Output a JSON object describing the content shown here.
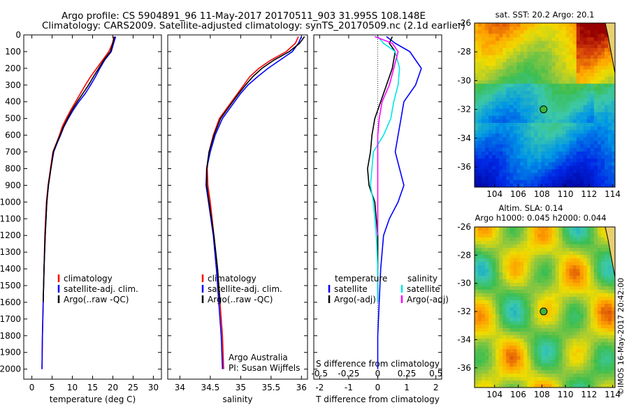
{
  "header": {
    "title_line1": "Argo profile: CS 5904891_96 11-May-2017 20170511_903 31.995S 108.148E",
    "title_line2": "Climatology: CARS2009. Satellite-adjusted climatology: synTS_20170509.nc (2.1d earlier)"
  },
  "credit": "©IMOS 16-May-2017 20:42:00",
  "colors": {
    "climatology": "#ff0000",
    "satellite": "#0000ff",
    "argo": "#000000",
    "salinity_sat": "#00e6e6",
    "salinity_argo": "#ff00ff"
  },
  "chart_data": [
    {
      "type": "line",
      "xlabel": "temperature (deg C)",
      "xlim": [
        -2,
        32
      ],
      "ylim": [
        2060,
        0
      ],
      "xticks": [
        "0",
        "5",
        "10",
        "15",
        "20",
        "25",
        "30"
      ],
      "yticks": [
        "0",
        "100",
        "200",
        "300",
        "400",
        "500",
        "600",
        "700",
        "800",
        "900",
        "1000",
        "1100",
        "1200",
        "1300",
        "1400",
        "1500",
        "1600",
        "1700",
        "1800",
        "1900",
        "2000"
      ],
      "legend": [
        "climatology",
        "satellite-adj. clim.",
        "Argo(..raw -QC)"
      ],
      "series": [
        {
          "name": "climatology",
          "color": "#ff0000",
          "x": [
            20.3,
            19.9,
            19.0,
            17.5,
            16.0,
            14.5,
            13.2,
            12.0,
            10.8,
            9.6,
            8.5,
            7.5,
            6.8,
            6.0,
            5.2,
            4.6,
            4.0,
            3.6,
            3.2,
            3.0,
            2.8,
            2.6,
            2.5
          ],
          "y": [
            10,
            50,
            100,
            150,
            200,
            250,
            300,
            350,
            400,
            450,
            500,
            550,
            600,
            650,
            700,
            800,
            900,
            1000,
            1200,
            1400,
            1600,
            1800,
            2000
          ]
        },
        {
          "name": "satellite-adj. clim.",
          "color": "#0000ff",
          "x": [
            20.7,
            20.2,
            19.6,
            18.0,
            16.8,
            15.7,
            14.5,
            13.2,
            11.6,
            10.2,
            9.0,
            7.9,
            7.1,
            6.2,
            5.4,
            4.7,
            4.1,
            3.7,
            3.3,
            3.0,
            2.8,
            2.6,
            2.5
          ],
          "y": [
            10,
            50,
            100,
            150,
            200,
            250,
            300,
            350,
            400,
            450,
            500,
            550,
            600,
            650,
            700,
            800,
            900,
            1000,
            1200,
            1400,
            1600,
            1800,
            2000
          ]
        },
        {
          "name": "Argo(..raw -QC)",
          "color": "#000000",
          "x": [
            20.4,
            20.0,
            19.4,
            17.8,
            16.5,
            15.2,
            14.0,
            12.6,
            11.2,
            9.9,
            8.8,
            7.8,
            7.0,
            6.1,
            5.3,
            4.7,
            4.1,
            3.7,
            3.3,
            3.0,
            2.8
          ],
          "y": [
            10,
            50,
            100,
            150,
            200,
            250,
            300,
            350,
            400,
            450,
            500,
            550,
            600,
            650,
            700,
            800,
            900,
            1000,
            1200,
            1400,
            1600
          ]
        }
      ]
    },
    {
      "type": "line",
      "xlabel": "salinity",
      "xlim": [
        33.8,
        36.1
      ],
      "ylim": [
        2060,
        0
      ],
      "xticks": [
        "34",
        "34.5",
        "35",
        "35.5",
        "36"
      ],
      "legend": [
        "climatology",
        "satellite-adj. clim.",
        "Argo(..raw -QC)"
      ],
      "annotation": [
        "Argo Australia",
        "PI: Susan Wijffels"
      ],
      "series": [
        {
          "name": "climatology",
          "color": "#ff0000",
          "x": [
            35.95,
            35.9,
            35.75,
            35.5,
            35.3,
            35.15,
            35.05,
            34.95,
            34.85,
            34.75,
            34.65,
            34.55,
            34.48,
            34.45,
            34.46,
            34.5,
            34.56,
            34.62,
            34.66,
            34.7,
            34.72
          ],
          "y": [
            10,
            50,
            100,
            150,
            200,
            250,
            300,
            350,
            400,
            450,
            500,
            600,
            700,
            800,
            900,
            1000,
            1200,
            1400,
            1600,
            1800,
            2000
          ]
        },
        {
          "name": "satellite-adj. clim.",
          "color": "#0000ff",
          "x": [
            36.0,
            35.95,
            35.85,
            35.65,
            35.45,
            35.28,
            35.12,
            35.0,
            34.9,
            34.8,
            34.7,
            34.58,
            34.5,
            34.44,
            34.43,
            34.47,
            34.55,
            34.6,
            34.64,
            34.68,
            34.7
          ],
          "y": [
            10,
            50,
            100,
            150,
            200,
            250,
            300,
            350,
            400,
            450,
            500,
            600,
            700,
            800,
            900,
            1000,
            1200,
            1400,
            1600,
            1800,
            2000
          ]
        },
        {
          "name": "Argo(..raw -QC)",
          "color": "#000000",
          "x": [
            36.05,
            35.97,
            35.8,
            35.55,
            35.35,
            35.2,
            35.08,
            34.97,
            34.87,
            34.77,
            34.67,
            34.56,
            34.48,
            34.44,
            34.44,
            34.48,
            34.56,
            34.62,
            34.66
          ],
          "y": [
            10,
            50,
            100,
            150,
            200,
            250,
            300,
            350,
            400,
            450,
            500,
            600,
            700,
            800,
            900,
            1000,
            1200,
            1400,
            1600
          ]
        }
      ]
    },
    {
      "type": "line",
      "xlabel": "T difference from climatology",
      "xlabel_top": "S difference from climatology",
      "xlim": [
        -2.2,
        2.2
      ],
      "ylim": [
        2060,
        0
      ],
      "xticks": [
        "-2",
        "-1",
        "0",
        "1",
        "2"
      ],
      "xticks_top": [
        "-0.5",
        "-0.25",
        "0",
        "0.25",
        "0.5"
      ],
      "legend_headers": [
        "temperature",
        "salinity"
      ],
      "legend": [
        "satellite",
        "Argo(-adj)",
        "satellite",
        "Argo(-adj)"
      ],
      "series": [
        {
          "name": "satellite",
          "group": "temperature",
          "color": "#0000ff",
          "x": [
            0.3,
            0.6,
            1.1,
            1.5,
            1.3,
            0.9,
            0.8,
            0.7,
            0.6,
            0.75,
            0.9,
            0.7,
            0.4,
            0.2,
            0.1,
            0.05,
            0.0,
            0.0,
            0.0
          ],
          "y": [
            10,
            50,
            100,
            200,
            300,
            400,
            500,
            600,
            700,
            800,
            900,
            1000,
            1100,
            1200,
            1400,
            1600,
            1800,
            1900,
            2000
          ]
        },
        {
          "name": "Argo(-adj)",
          "group": "temperature",
          "color": "#000000",
          "x": [
            0.5,
            0.4,
            0.6,
            0.5,
            0.3,
            0.1,
            -0.1,
            -0.2,
            -0.25,
            -0.35,
            -0.3,
            -0.1,
            0.0,
            0.0,
            0.0
          ],
          "y": [
            10,
            50,
            100,
            200,
            300,
            400,
            500,
            600,
            700,
            800,
            900,
            1000,
            1200,
            1400,
            1600
          ]
        },
        {
          "name": "satellite",
          "group": "salinity",
          "color": "#00e6e6",
          "x": [
            0.0,
            0.2,
            0.6,
            0.75,
            0.7,
            0.55,
            0.45,
            0.2,
            -0.15,
            -0.2,
            -0.25,
            -0.15,
            -0.05,
            0.0,
            0.0
          ],
          "y": [
            10,
            50,
            100,
            200,
            300,
            400,
            500,
            600,
            700,
            800,
            900,
            1000,
            1200,
            1400,
            1600
          ]
        },
        {
          "name": "Argo(-adj)",
          "group": "salinity",
          "color": "#ff00ff",
          "x": [
            -0.1,
            0.5,
            0.7,
            0.55,
            0.4,
            0.15,
            0.05,
            0.0,
            0.0,
            0.0,
            0.0
          ],
          "y": [
            10,
            50,
            100,
            200,
            300,
            400,
            500,
            600,
            800,
            1000,
            1200
          ]
        }
      ]
    },
    {
      "type": "heatmap",
      "title": "sat. SST: 20.2  Argo: 20.1",
      "xlim": [
        102.3,
        114.2
      ],
      "ylim": [
        -37.4,
        -26
      ],
      "xticks": [
        "104",
        "106",
        "108",
        "110",
        "112",
        "114"
      ],
      "yticks": [
        "-26",
        "-28",
        "-30",
        "-32",
        "-34",
        "-36"
      ],
      "marker": {
        "lon": 108.148,
        "lat": -31.995
      }
    },
    {
      "type": "heatmap",
      "title": "Altim. SLA: 0.14",
      "title2": "Argo h1000: 0.045 h2000: 0.044",
      "xlim": [
        102.3,
        114.2
      ],
      "ylim": [
        -37.4,
        -26
      ],
      "xticks": [
        "104",
        "106",
        "108",
        "110",
        "112",
        "114"
      ],
      "yticks": [
        "-26",
        "-28",
        "-30",
        "-32",
        "-34",
        "-36"
      ],
      "marker": {
        "lon": 108.148,
        "lat": -31.995
      }
    }
  ]
}
